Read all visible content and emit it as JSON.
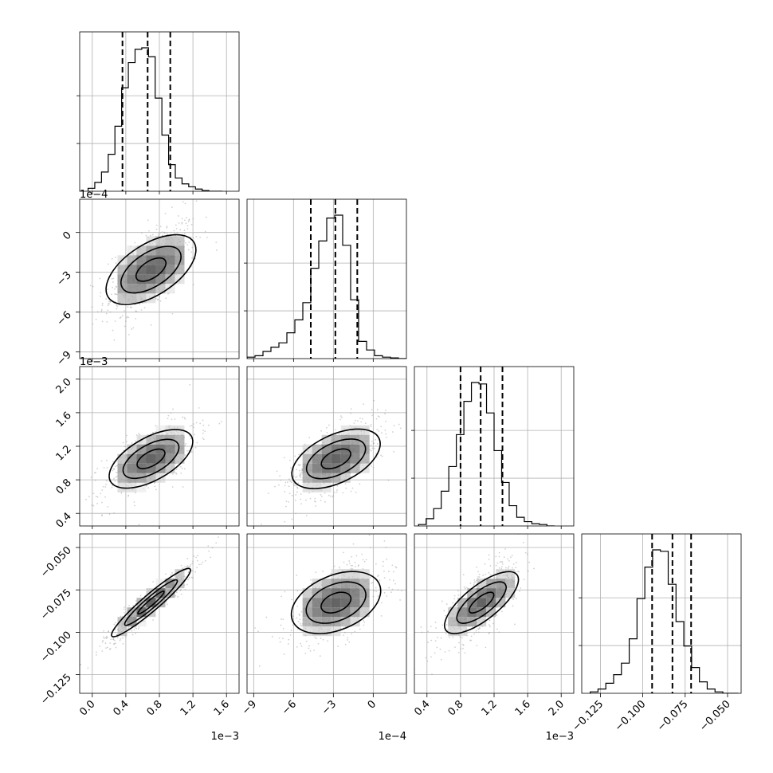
{
  "chart_data": {
    "type": "corner",
    "grid": true,
    "quantiles": [
      0.16,
      0.5,
      0.84
    ],
    "parameters": [
      {
        "index": 0,
        "range": [
          -0.00015,
          0.00175
        ],
        "ticks": [
          0.0,
          0.0004,
          0.0008,
          0.0012,
          0.0016
        ],
        "tick_labels": [
          "0.0",
          "0.4",
          "0.8",
          "1.2",
          "1.6"
        ],
        "offset_label": "1e−3",
        "quantile_values": [
          0.00036,
          0.00066,
          0.00093
        ],
        "hist_bin_start": -5e-05,
        "hist_bin_width": 8e-05,
        "hist_counts": [
          0.02,
          0.06,
          0.13,
          0.25,
          0.44,
          0.7,
          0.87,
          0.96,
          0.97,
          0.91,
          0.63,
          0.38,
          0.18,
          0.09,
          0.05,
          0.03,
          0.015,
          0.005,
          0.0,
          0.0
        ]
      },
      {
        "index": 1,
        "range": [
          -0.00095,
          0.00025
        ],
        "ticks": [
          -0.0009,
          -0.0006,
          -0.0003,
          0.0
        ],
        "tick_labels": [
          "−9",
          "−6",
          "−3",
          "0"
        ],
        "offset_label": "1e−4",
        "quantile_values": [
          -0.00047,
          -0.000285,
          -0.00012
        ],
        "hist_bin_start": -0.00095,
        "hist_bin_width": 6e-05,
        "hist_counts": [
          0.01,
          0.02,
          0.05,
          0.08,
          0.11,
          0.18,
          0.27,
          0.39,
          0.63,
          0.82,
          0.98,
          1.0,
          0.79,
          0.41,
          0.12,
          0.06,
          0.02,
          0.01,
          0.005,
          0.0
        ]
      },
      {
        "index": 2,
        "range": [
          0.00025,
          0.00215
        ],
        "ticks": [
          0.0004,
          0.0008,
          0.0012,
          0.0016,
          0.002
        ],
        "tick_labels": [
          "0.4",
          "0.8",
          "1.2",
          "1.6",
          "2.0"
        ],
        "offset_label": "1e−3",
        "quantile_values": [
          0.0008,
          0.00104,
          0.0013
        ],
        "hist_bin_start": 0.0003,
        "hist_bin_width": 9e-05,
        "hist_counts": [
          0.01,
          0.05,
          0.12,
          0.24,
          0.41,
          0.63,
          0.86,
          0.99,
          0.98,
          0.78,
          0.52,
          0.3,
          0.14,
          0.06,
          0.03,
          0.015,
          0.01,
          0.0
        ]
      },
      {
        "index": 3,
        "range": [
          -0.136,
          -0.042
        ],
        "ticks": [
          -0.125,
          -0.1,
          -0.075,
          -0.05
        ],
        "tick_labels": [
          "−0.125",
          "−0.100",
          "−0.075",
          "−0.050"
        ],
        "offset_label": "",
        "quantile_values": [
          -0.0945,
          -0.0825,
          -0.0715
        ],
        "hist_bin_start": -0.131,
        "hist_bin_width": 0.0046,
        "hist_counts": [
          0.01,
          0.03,
          0.07,
          0.13,
          0.21,
          0.38,
          0.66,
          0.88,
          1.0,
          0.99,
          0.76,
          0.5,
          0.33,
          0.18,
          0.08,
          0.03,
          0.01,
          0.0,
          0.0
        ]
      }
    ],
    "joint": [
      {
        "x": 0,
        "y": 1,
        "mean": [
          0.0007,
          -0.00028
        ],
        "sd": [
          0.00028,
          0.00019
        ],
        "rho": 0.6
      },
      {
        "x": 0,
        "y": 2,
        "mean": [
          0.0007,
          0.00105
        ],
        "sd": [
          0.00028,
          0.00024
        ],
        "rho": 0.65
      },
      {
        "x": 1,
        "y": 2,
        "mean": [
          -0.00028,
          0.00105
        ],
        "sd": [
          0.00019,
          0.00024
        ],
        "rho": 0.6
      },
      {
        "x": 0,
        "y": 3,
        "mean": [
          0.0007,
          -0.0825
        ],
        "sd": [
          0.00028,
          0.0125
        ],
        "rho": 0.95
      },
      {
        "x": 1,
        "y": 3,
        "mean": [
          -0.00028,
          -0.0825
        ],
        "sd": [
          0.00019,
          0.0125
        ],
        "rho": 0.5
      },
      {
        "x": 2,
        "y": 3,
        "mean": [
          0.00105,
          -0.0825
        ],
        "sd": [
          0.00024,
          0.0125
        ],
        "rho": 0.75
      }
    ]
  }
}
